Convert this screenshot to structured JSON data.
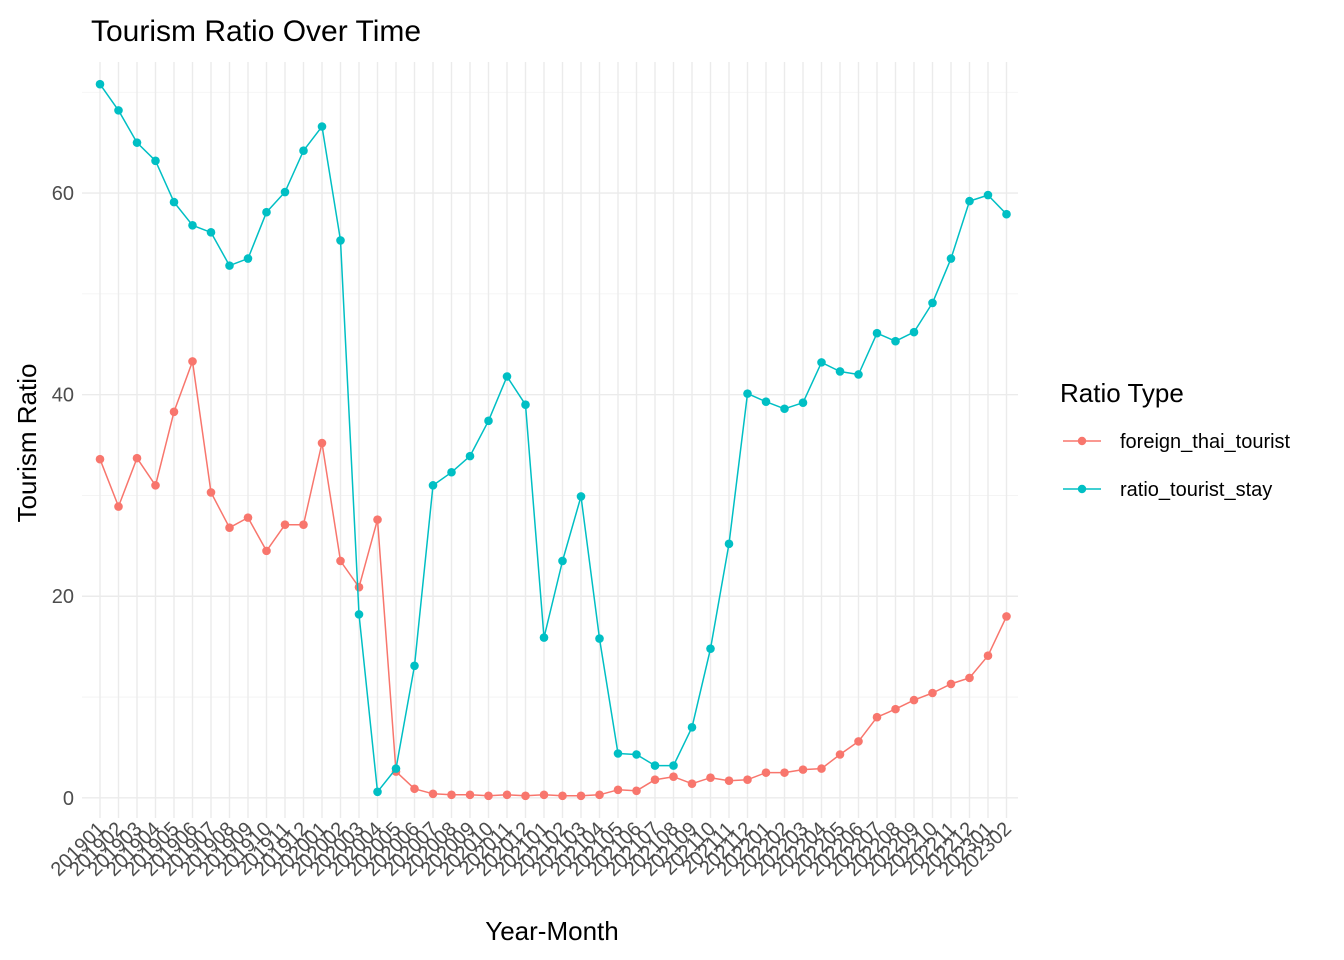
{
  "chart_data": {
    "type": "line",
    "title": "Tourism Ratio Over Time",
    "xlabel": "Year-Month",
    "ylabel": "Tourism Ratio",
    "ylim": [
      -2,
      73
    ],
    "yticks": [
      0,
      20,
      40,
      60
    ],
    "grid": true,
    "legend": {
      "title": "Ratio Type",
      "placement": "right"
    },
    "categories": [
      "201901",
      "201902",
      "201903",
      "201904",
      "201905",
      "201906",
      "201907",
      "201908",
      "201909",
      "201910",
      "201911",
      "201912",
      "202001",
      "202002",
      "202003",
      "202004",
      "202005",
      "202006",
      "202007",
      "202008",
      "202009",
      "202010",
      "202011",
      "202012",
      "202101",
      "202102",
      "202103",
      "202104",
      "202105",
      "202106",
      "202107",
      "202108",
      "202109",
      "202110",
      "202111",
      "202112",
      "202201",
      "202202",
      "202203",
      "202204",
      "202205",
      "202206",
      "202207",
      "202208",
      "202209",
      "202210",
      "202211",
      "202212",
      "202301",
      "202302"
    ],
    "series": [
      {
        "name": "foreign_thai_tourist",
        "color": "#F8766D",
        "values": [
          33.6,
          28.9,
          33.7,
          31.0,
          38.3,
          43.3,
          30.3,
          26.8,
          27.8,
          24.5,
          27.1,
          27.1,
          35.2,
          23.5,
          20.9,
          27.6,
          2.6,
          0.9,
          0.4,
          0.3,
          0.3,
          0.2,
          0.3,
          0.2,
          0.3,
          0.2,
          0.2,
          0.3,
          0.8,
          0.7,
          1.8,
          2.1,
          1.4,
          2.0,
          1.7,
          1.8,
          2.5,
          2.5,
          2.8,
          2.9,
          4.3,
          5.6,
          8.0,
          8.8,
          9.7,
          10.4,
          11.3,
          11.9,
          14.1,
          18.0
        ]
      },
      {
        "name": "ratio_tourist_stay",
        "color": "#00BFC4",
        "values": [
          70.8,
          68.2,
          65.0,
          63.2,
          59.1,
          56.8,
          56.1,
          52.8,
          53.5,
          58.1,
          60.1,
          64.2,
          66.6,
          55.3,
          18.2,
          0.6,
          2.9,
          13.1,
          31.0,
          32.3,
          33.9,
          37.4,
          41.8,
          39.0,
          15.9,
          23.5,
          29.9,
          15.8,
          4.4,
          4.3,
          3.2,
          3.2,
          7.0,
          14.8,
          25.2,
          40.1,
          39.3,
          38.6,
          39.2,
          43.2,
          42.3,
          42.0,
          46.1,
          45.3,
          46.2,
          49.1,
          53.5,
          59.2,
          59.8,
          57.9
        ]
      }
    ]
  }
}
